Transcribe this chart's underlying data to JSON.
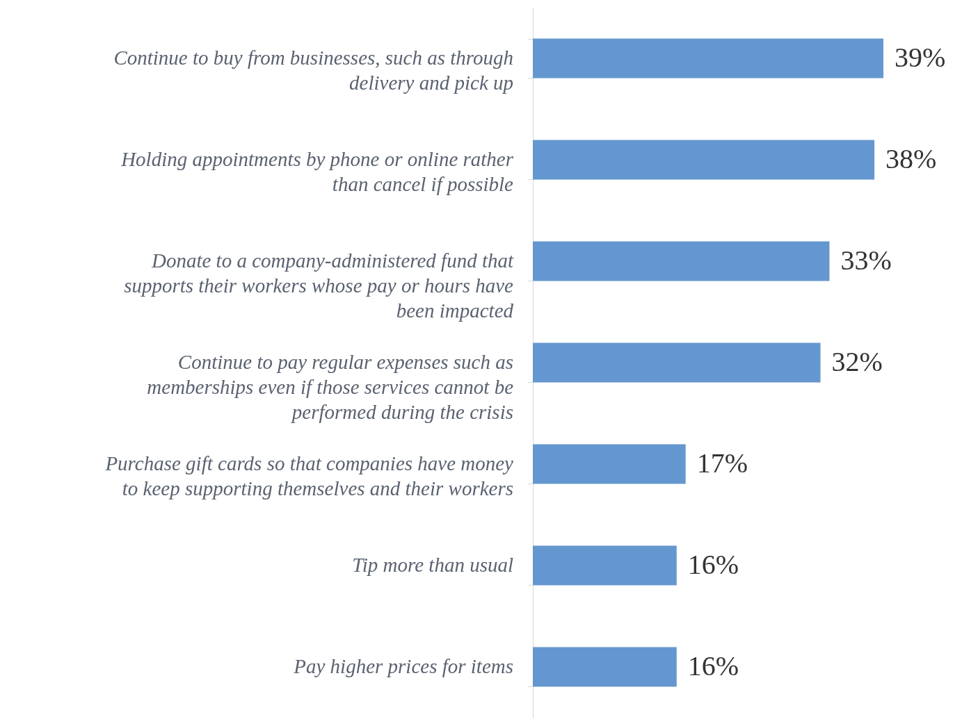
{
  "chart_data": {
    "type": "bar",
    "orientation": "horizontal",
    "categories": [
      "Continue to buy from businesses, such as through delivery and pick up",
      "Holding appointments by phone or online rather than cancel if possible",
      "Donate to a company-administered fund that supports their workers whose pay or hours have been impacted",
      "Continue to pay regular expenses such as memberships even if those services cannot be performed during the crisis",
      "Purchase gift cards so that companies have money to keep supporting themselves and their workers",
      "Tip more than usual",
      "Pay higher prices for items"
    ],
    "values": [
      39,
      38,
      33,
      32,
      17,
      16,
      16
    ],
    "value_labels": [
      "39%",
      "38%",
      "33%",
      "32%",
      "17%",
      "16%",
      "16%"
    ],
    "color": "#6497cf"
  }
}
